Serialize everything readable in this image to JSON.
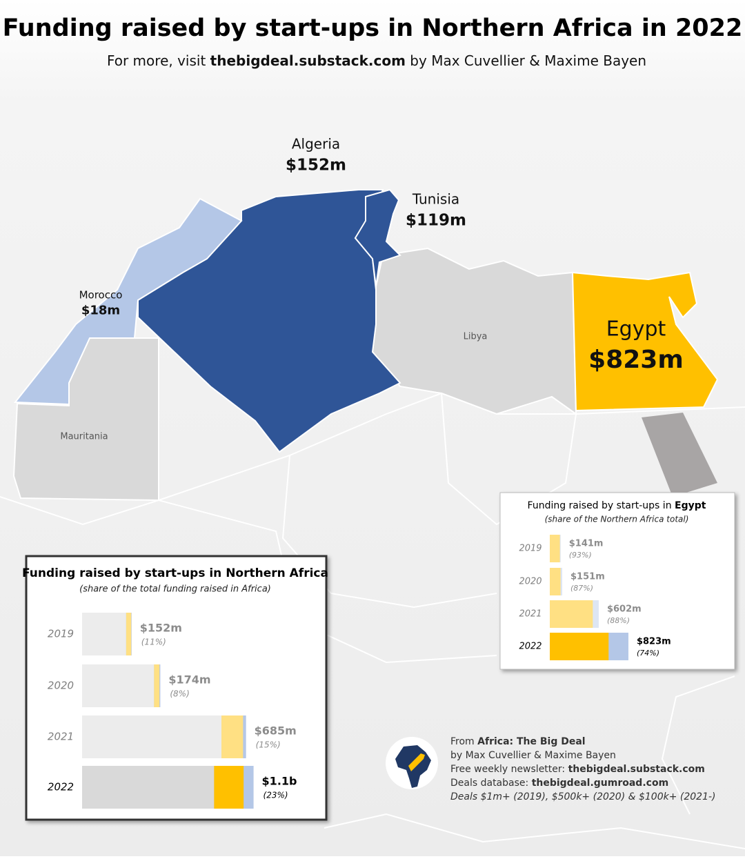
{
  "title": "Funding raised by start-ups in Northern Africa in 2022",
  "subtitle": {
    "prefix": "For more, visit ",
    "link": "thebigdeal.substack.com",
    "suffix": " by Max Cuvellier & Maxime Bayen"
  },
  "map": {
    "countries": [
      {
        "name": "Algeria",
        "value": 152,
        "value_label": "$152m",
        "color": "#2f5597"
      },
      {
        "name": "Tunisia",
        "value": 119,
        "value_label": "$119m",
        "color": "#2f5597"
      },
      {
        "name": "Morocco",
        "value": 18,
        "value_label": "$18m",
        "color": "#b4c7e7"
      },
      {
        "name": "Egypt",
        "value": 823,
        "value_label": "$823m",
        "color": "#ffc000"
      }
    ],
    "labels": [
      "Libya",
      "Mauritania"
    ]
  },
  "north_africa_chart": {
    "type": "bar",
    "title": "Funding raised by start-ups in Northern Africa",
    "subtitle": "(share of the total funding raised in Africa)",
    "categories": [
      "2019",
      "2020",
      "2021",
      "2022"
    ],
    "africa_total": [
      1380,
      2180,
      4570,
      4780
    ],
    "values": [
      152,
      174,
      685,
      1100
    ],
    "value_labels": [
      "$152m",
      "$174m",
      "$685m",
      "$1.1b"
    ],
    "shares": [
      11,
      8,
      15,
      23
    ],
    "share_labels": [
      "(11%)",
      "(8%)",
      "(15%)",
      "(23%)"
    ]
  },
  "egypt_chart": {
    "type": "bar",
    "title_prefix": "Funding raised by start-ups in ",
    "title_country": "Egypt",
    "subtitle": "(share of the Northern Africa total)",
    "categories": [
      "2019",
      "2020",
      "2021",
      "2022"
    ],
    "values": [
      141,
      151,
      602,
      823
    ],
    "value_labels": [
      "$141m",
      "$151m",
      "$602m",
      "$823m"
    ],
    "shares": [
      93,
      87,
      88,
      74
    ],
    "share_labels": [
      "(93%)",
      "(87%)",
      "(88%)",
      "(74%)"
    ]
  },
  "credits": {
    "from_prefix": "From ",
    "from_name": "Africa: The Big Deal",
    "authors": "by Max Cuvellier & Maxime Bayen",
    "newsletter_prefix": "Free weekly newsletter: ",
    "newsletter": "thebigdeal.substack.com",
    "database_prefix": "Deals database: ",
    "database": "thebigdeal.gumroad.com",
    "note": "Deals $1m+ (2019), $500k+ (2020) & $100k+ (2021-)"
  }
}
